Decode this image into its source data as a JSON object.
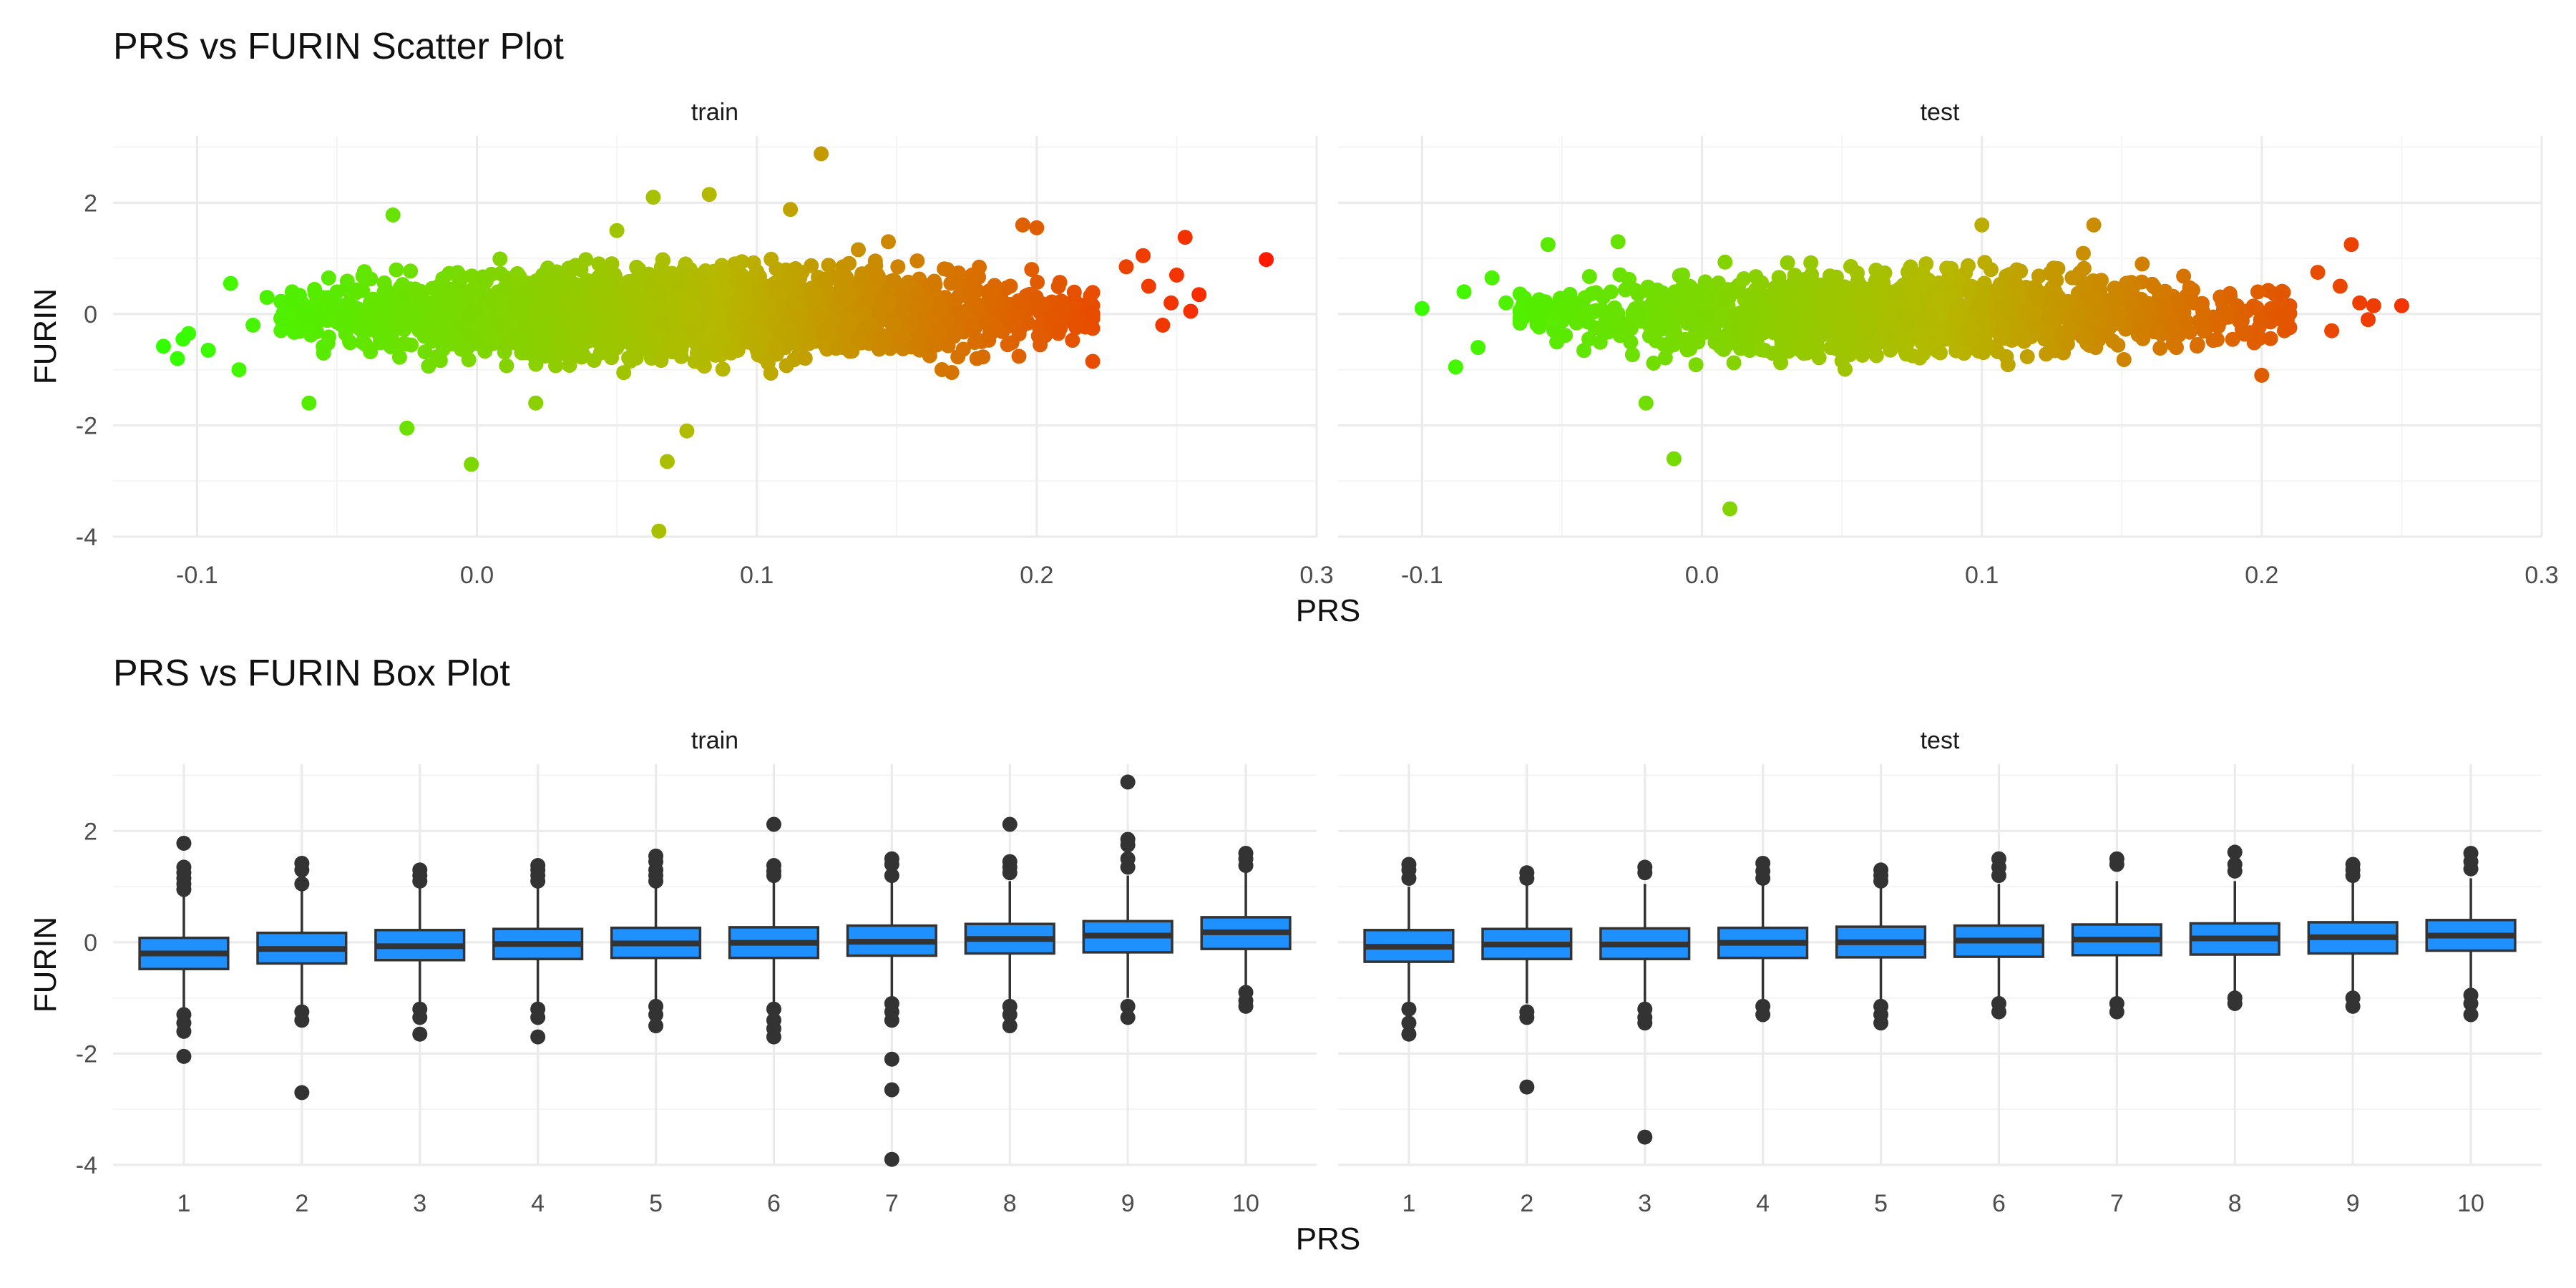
{
  "chart_data": [
    {
      "id": "scatter",
      "type": "scatter",
      "title": "PRS vs FURIN Scatter Plot",
      "xlabel": "PRS",
      "ylabel": "FURIN",
      "xlim": [
        -0.13,
        0.3
      ],
      "ylim": [
        -4.0,
        3.2
      ],
      "x_ticks": [
        -0.1,
        0.0,
        0.1,
        0.2,
        0.3
      ],
      "x_tick_labels": [
        "-0.1",
        "0.0",
        "0.1",
        "0.2",
        "0.3"
      ],
      "y_ticks": [
        -4,
        -2,
        0,
        2
      ],
      "y_tick_labels": [
        "-4",
        "-2",
        "0",
        "2"
      ],
      "grid": true,
      "color_gradient": [
        "#33ff00",
        "#b6b800",
        "#ff1a00"
      ],
      "facets": [
        {
          "name": "train",
          "cloud": {
            "x_center": 0.07,
            "x_sd": 0.055,
            "x_min": -0.07,
            "x_max": 0.22,
            "y_mean": 0.0,
            "y_sd": 0.35,
            "n": 2600
          },
          "points": [
            {
              "x": -0.112,
              "y": -0.58
            },
            {
              "x": -0.105,
              "y": -0.45
            },
            {
              "x": -0.103,
              "y": -0.35
            },
            {
              "x": -0.107,
              "y": -0.8
            },
            {
              "x": -0.096,
              "y": -0.65
            },
            {
              "x": -0.088,
              "y": 0.55
            },
            {
              "x": -0.085,
              "y": -1.0
            },
            {
              "x": -0.08,
              "y": -0.2
            },
            {
              "x": -0.075,
              "y": 0.3
            },
            {
              "x": -0.06,
              "y": -1.6
            },
            {
              "x": -0.03,
              "y": 1.78
            },
            {
              "x": -0.025,
              "y": -2.05
            },
            {
              "x": -0.002,
              "y": -2.7
            },
            {
              "x": 0.021,
              "y": -1.6
            },
            {
              "x": 0.05,
              "y": 1.5
            },
            {
              "x": 0.063,
              "y": 2.1
            },
            {
              "x": 0.065,
              "y": -3.9
            },
            {
              "x": 0.068,
              "y": -2.65
            },
            {
              "x": 0.075,
              "y": -2.1
            },
            {
              "x": 0.083,
              "y": 2.15
            },
            {
              "x": 0.112,
              "y": 1.88
            },
            {
              "x": 0.123,
              "y": 2.88
            },
            {
              "x": 0.147,
              "y": 1.3
            },
            {
              "x": 0.195,
              "y": 1.6
            },
            {
              "x": 0.2,
              "y": 1.55
            },
            {
              "x": 0.22,
              "y": -0.85
            },
            {
              "x": 0.232,
              "y": 0.85
            },
            {
              "x": 0.238,
              "y": 1.05
            },
            {
              "x": 0.24,
              "y": 0.5
            },
            {
              "x": 0.245,
              "y": -0.2
            },
            {
              "x": 0.248,
              "y": 0.2
            },
            {
              "x": 0.25,
              "y": 0.7
            },
            {
              "x": 0.253,
              "y": 1.38
            },
            {
              "x": 0.255,
              "y": 0.05
            },
            {
              "x": 0.258,
              "y": 0.35
            },
            {
              "x": 0.282,
              "y": 0.98
            }
          ]
        },
        {
          "name": "test",
          "cloud": {
            "x_center": 0.07,
            "x_sd": 0.055,
            "x_min": -0.065,
            "x_max": 0.21,
            "y_mean": 0.0,
            "y_sd": 0.33,
            "n": 1500
          },
          "points": [
            {
              "x": -0.1,
              "y": 0.1
            },
            {
              "x": -0.088,
              "y": -0.95
            },
            {
              "x": -0.085,
              "y": 0.4
            },
            {
              "x": -0.08,
              "y": -0.6
            },
            {
              "x": -0.075,
              "y": 0.65
            },
            {
              "x": -0.07,
              "y": 0.2
            },
            {
              "x": -0.055,
              "y": 1.25
            },
            {
              "x": -0.03,
              "y": 1.3
            },
            {
              "x": -0.01,
              "y": -2.6
            },
            {
              "x": 0.01,
              "y": -3.5
            },
            {
              "x": -0.02,
              "y": -1.6
            },
            {
              "x": 0.1,
              "y": 1.6
            },
            {
              "x": 0.14,
              "y": 1.6
            },
            {
              "x": 0.2,
              "y": -1.1
            },
            {
              "x": 0.22,
              "y": 0.75
            },
            {
              "x": 0.225,
              "y": -0.3
            },
            {
              "x": 0.228,
              "y": 0.5
            },
            {
              "x": 0.232,
              "y": 1.25
            },
            {
              "x": 0.235,
              "y": 0.2
            },
            {
              "x": 0.238,
              "y": -0.1
            },
            {
              "x": 0.24,
              "y": 0.15
            },
            {
              "x": 0.25,
              "y": 0.15
            }
          ]
        }
      ]
    },
    {
      "id": "box",
      "type": "box",
      "title": "PRS vs FURIN Box Plot",
      "xlabel": "PRS",
      "ylabel": "FURIN",
      "categories": [
        "1",
        "2",
        "3",
        "4",
        "5",
        "6",
        "7",
        "8",
        "9",
        "10"
      ],
      "ylim": [
        -4.0,
        3.2
      ],
      "y_ticks": [
        -4,
        -2,
        0,
        2
      ],
      "y_tick_labels": [
        "-4",
        "-2",
        "0",
        "2"
      ],
      "grid": true,
      "box_color": "#1e90ff",
      "facets": [
        {
          "name": "train",
          "boxes": [
            {
              "q1": -0.48,
              "median": -0.2,
              "q3": 0.08,
              "whisker_low": -1.25,
              "whisker_high": 0.88,
              "outliers": [
                1.78,
                1.35,
                1.25,
                1.15,
                1.05,
                0.95,
                -1.3,
                -1.45,
                -1.6,
                -2.05
              ]
            },
            {
              "q1": -0.38,
              "median": -0.12,
              "q3": 0.17,
              "whisker_low": -1.2,
              "whisker_high": 1.0,
              "outliers": [
                1.42,
                1.3,
                1.05,
                -1.25,
                -1.4,
                -2.7
              ]
            },
            {
              "q1": -0.32,
              "median": -0.07,
              "q3": 0.22,
              "whisker_low": -1.15,
              "whisker_high": 1.05,
              "outliers": [
                1.3,
                1.2,
                1.1,
                -1.2,
                -1.35,
                -1.65
              ]
            },
            {
              "q1": -0.3,
              "median": -0.03,
              "q3": 0.24,
              "whisker_low": -1.1,
              "whisker_high": 1.05,
              "outliers": [
                1.38,
                1.3,
                1.2,
                1.1,
                -1.2,
                -1.35,
                -1.7
              ]
            },
            {
              "q1": -0.28,
              "median": -0.02,
              "q3": 0.26,
              "whisker_low": -1.1,
              "whisker_high": 1.05,
              "outliers": [
                1.55,
                1.45,
                1.3,
                1.2,
                1.1,
                -1.15,
                -1.3,
                -1.5
              ]
            },
            {
              "q1": -0.28,
              "median": -0.01,
              "q3": 0.27,
              "whisker_low": -1.15,
              "whisker_high": 1.1,
              "outliers": [
                2.12,
                1.38,
                1.28,
                1.2,
                -1.2,
                -1.4,
                -1.55,
                -1.7
              ]
            },
            {
              "q1": -0.24,
              "median": 0.01,
              "q3": 0.3,
              "whisker_low": -1.1,
              "whisker_high": 1.1,
              "outliers": [
                1.5,
                1.4,
                1.2,
                -1.1,
                -1.25,
                -1.4,
                -2.1,
                -2.65,
                -3.9
              ]
            },
            {
              "q1": -0.2,
              "median": 0.06,
              "q3": 0.33,
              "whisker_low": -1.05,
              "whisker_high": 1.1,
              "outliers": [
                2.12,
                1.45,
                1.35,
                1.25,
                -1.15,
                -1.3,
                -1.5
              ]
            },
            {
              "q1": -0.18,
              "median": 0.12,
              "q3": 0.38,
              "whisker_low": -1.0,
              "whisker_high": 1.2,
              "outliers": [
                2.88,
                1.85,
                1.75,
                1.5,
                1.35,
                -1.15,
                -1.35
              ]
            },
            {
              "q1": -0.12,
              "median": 0.18,
              "q3": 0.45,
              "whisker_low": -0.85,
              "whisker_high": 1.25,
              "outliers": [
                1.6,
                1.5,
                1.38,
                -0.9,
                -1.05,
                -1.15
              ]
            }
          ]
        },
        {
          "name": "test",
          "boxes": [
            {
              "q1": -0.35,
              "median": -0.08,
              "q3": 0.22,
              "whisker_low": -1.1,
              "whisker_high": 1.0,
              "outliers": [
                1.4,
                1.3,
                1.15,
                -1.2,
                -1.45,
                -1.65
              ]
            },
            {
              "q1": -0.3,
              "median": -0.04,
              "q3": 0.24,
              "whisker_low": -1.1,
              "whisker_high": 1.05,
              "outliers": [
                1.25,
                1.15,
                -1.25,
                -1.35,
                -2.6
              ]
            },
            {
              "q1": -0.3,
              "median": -0.04,
              "q3": 0.25,
              "whisker_low": -1.1,
              "whisker_high": 1.05,
              "outliers": [
                1.35,
                1.25,
                -1.2,
                -1.35,
                -1.45,
                -3.5
              ]
            },
            {
              "q1": -0.28,
              "median": -0.01,
              "q3": 0.26,
              "whisker_low": -1.05,
              "whisker_high": 1.05,
              "outliers": [
                1.42,
                1.28,
                1.15,
                -1.15,
                -1.3
              ]
            },
            {
              "q1": -0.27,
              "median": 0.0,
              "q3": 0.28,
              "whisker_low": -1.05,
              "whisker_high": 1.05,
              "outliers": [
                1.3,
                1.2,
                1.1,
                -1.15,
                -1.3,
                -1.45
              ]
            },
            {
              "q1": -0.26,
              "median": 0.03,
              "q3": 0.3,
              "whisker_low": -1.05,
              "whisker_high": 1.05,
              "outliers": [
                1.5,
                1.35,
                1.2,
                -1.1,
                -1.25
              ]
            },
            {
              "q1": -0.23,
              "median": 0.05,
              "q3": 0.32,
              "whisker_low": -1.0,
              "whisker_high": 1.1,
              "outliers": [
                1.5,
                1.4,
                -1.1,
                -1.25
              ]
            },
            {
              "q1": -0.22,
              "median": 0.07,
              "q3": 0.34,
              "whisker_low": -0.95,
              "whisker_high": 1.1,
              "outliers": [
                1.62,
                1.4,
                1.28,
                -1.0,
                -1.1
              ]
            },
            {
              "q1": -0.2,
              "median": 0.09,
              "q3": 0.36,
              "whisker_low": -0.95,
              "whisker_high": 1.1,
              "outliers": [
                1.4,
                1.3,
                1.2,
                -1.0,
                -1.15
              ]
            },
            {
              "q1": -0.15,
              "median": 0.12,
              "q3": 0.4,
              "whisker_low": -0.85,
              "whisker_high": 1.15,
              "outliers": [
                1.6,
                1.45,
                1.32,
                -0.95,
                -1.1,
                -1.3
              ]
            }
          ]
        }
      ]
    }
  ]
}
